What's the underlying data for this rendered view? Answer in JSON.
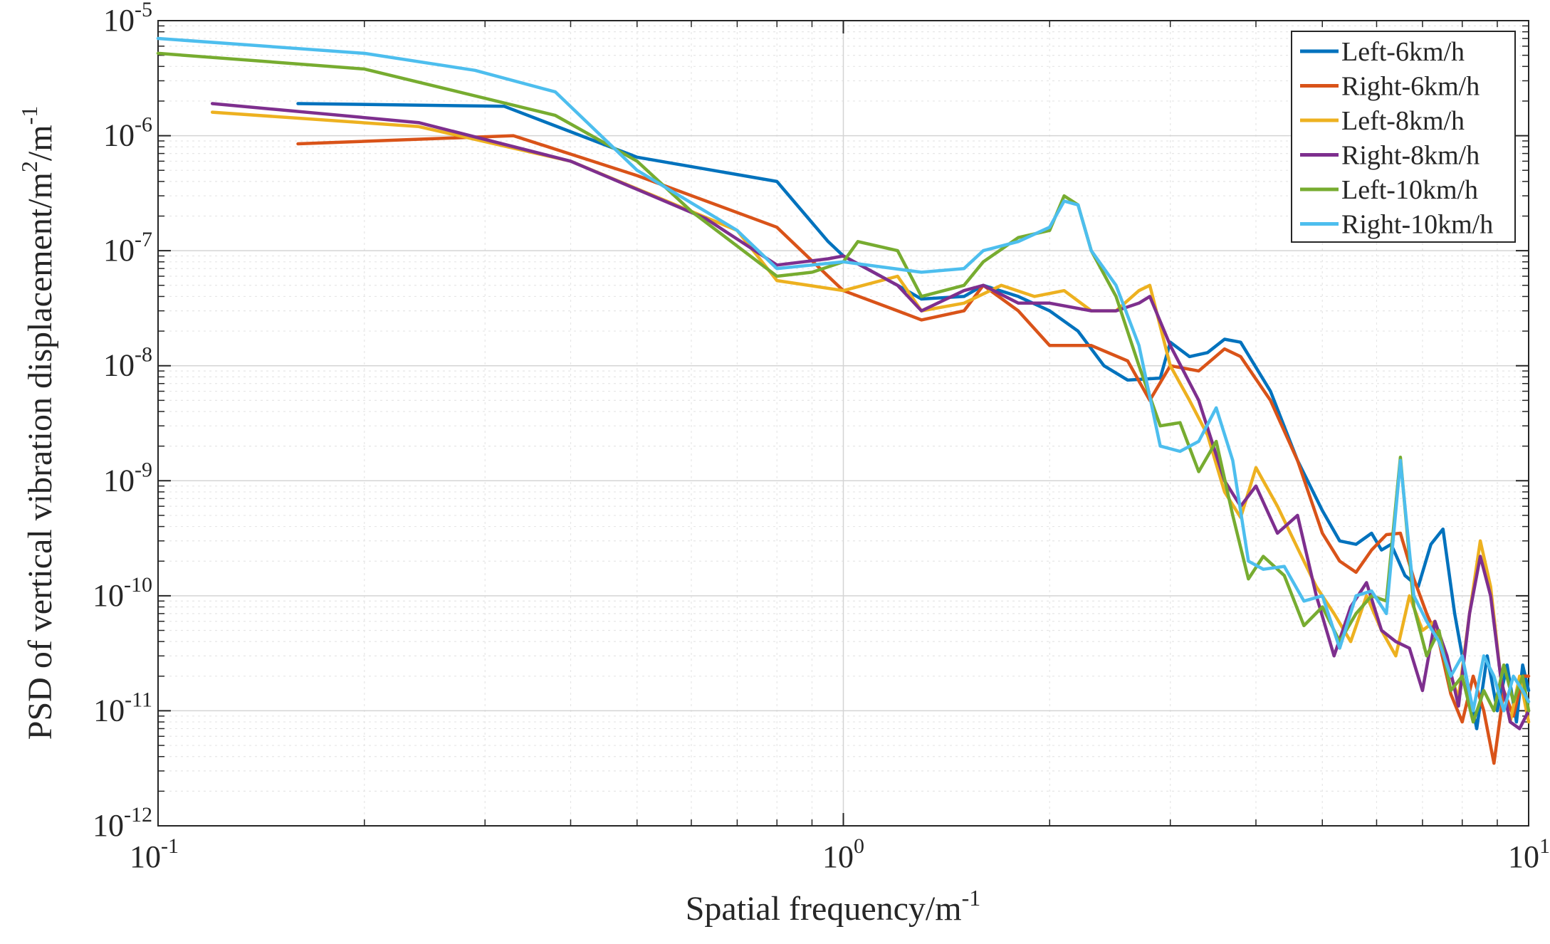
{
  "chart_data": {
    "type": "line",
    "xscale": "log",
    "yscale": "log",
    "xlabel": "Spatial frequency/m",
    "xlabel_sup": "-1",
    "ylabel": "PSD of vertical vibration displacement/m",
    "ylabel_sup1": "2",
    "ylabel_mid": "/m",
    "ylabel_sup2": "-1",
    "xlim": [
      0.1,
      10
    ],
    "ylim": [
      1e-12,
      1e-05
    ],
    "grid": true,
    "legend_position": "top-right",
    "x_ticks": [
      {
        "value": 0.1,
        "base": "10",
        "exp": "-1"
      },
      {
        "value": 1,
        "base": "10",
        "exp": "0"
      },
      {
        "value": 10,
        "base": "10",
        "exp": "1"
      }
    ],
    "y_ticks": [
      {
        "value": 1e-12,
        "base": "10",
        "exp": "-12"
      },
      {
        "value": 1e-11,
        "base": "10",
        "exp": "-11"
      },
      {
        "value": 1e-10,
        "base": "10",
        "exp": "-10"
      },
      {
        "value": 1e-09,
        "base": "10",
        "exp": "-9"
      },
      {
        "value": 1e-08,
        "base": "10",
        "exp": "-8"
      },
      {
        "value": 1e-07,
        "base": "10",
        "exp": "-7"
      },
      {
        "value": 1e-06,
        "base": "10",
        "exp": "-6"
      },
      {
        "value": 1e-05,
        "base": "10",
        "exp": "-5"
      }
    ],
    "series": [
      {
        "name": "Left-6km/h",
        "color": "#0072BD",
        "points": [
          [
            0.16,
            1.9e-06
          ],
          [
            0.32,
            1.8e-06
          ],
          [
            0.5,
            6.5e-07
          ],
          [
            0.8,
            4e-07
          ],
          [
            0.95,
            1.2e-07
          ],
          [
            1.0,
            9e-08
          ],
          [
            1.2,
            5e-08
          ],
          [
            1.3,
            3.8e-08
          ],
          [
            1.5,
            4e-08
          ],
          [
            1.6,
            5e-08
          ],
          [
            1.8,
            4e-08
          ],
          [
            2.0,
            3e-08
          ],
          [
            2.2,
            2e-08
          ],
          [
            2.4,
            1e-08
          ],
          [
            2.6,
            7.5e-09
          ],
          [
            2.9,
            7.8e-09
          ],
          [
            3.0,
            1.6e-08
          ],
          [
            3.2,
            1.2e-08
          ],
          [
            3.4,
            1.3e-08
          ],
          [
            3.6,
            1.7e-08
          ],
          [
            3.8,
            1.6e-08
          ],
          [
            4.2,
            6e-09
          ],
          [
            4.6,
            1.5e-09
          ],
          [
            5.0,
            5.5e-10
          ],
          [
            5.3,
            3e-10
          ],
          [
            5.6,
            2.8e-10
          ],
          [
            5.9,
            3.5e-10
          ],
          [
            6.1,
            2.5e-10
          ],
          [
            6.3,
            2.8e-10
          ],
          [
            6.6,
            1.5e-10
          ],
          [
            6.9,
            1.2e-10
          ],
          [
            7.2,
            2.8e-10
          ],
          [
            7.5,
            3.8e-10
          ],
          [
            7.8,
            7e-11
          ],
          [
            8.1,
            2e-11
          ],
          [
            8.4,
            7e-12
          ],
          [
            8.7,
            3e-11
          ],
          [
            9.0,
            1e-11
          ],
          [
            9.3,
            2.5e-11
          ],
          [
            9.6,
            8e-12
          ],
          [
            9.8,
            2.5e-11
          ],
          [
            10.0,
            1.5e-11
          ]
        ]
      },
      {
        "name": "Right-6km/h",
        "color": "#D95319",
        "points": [
          [
            0.16,
            8.5e-07
          ],
          [
            0.33,
            1e-06
          ],
          [
            0.5,
            4.5e-07
          ],
          [
            0.8,
            1.6e-07
          ],
          [
            0.95,
            6e-08
          ],
          [
            1.0,
            4.5e-08
          ],
          [
            1.2,
            3e-08
          ],
          [
            1.3,
            2.5e-08
          ],
          [
            1.5,
            3e-08
          ],
          [
            1.6,
            5e-08
          ],
          [
            1.8,
            3e-08
          ],
          [
            2.0,
            1.5e-08
          ],
          [
            2.3,
            1.5e-08
          ],
          [
            2.6,
            1.1e-08
          ],
          [
            2.8,
            5e-09
          ],
          [
            3.0,
            1e-08
          ],
          [
            3.3,
            9e-09
          ],
          [
            3.6,
            1.4e-08
          ],
          [
            3.8,
            1.2e-08
          ],
          [
            4.2,
            5e-09
          ],
          [
            4.6,
            1.5e-09
          ],
          [
            5.0,
            3.5e-10
          ],
          [
            5.3,
            2e-10
          ],
          [
            5.6,
            1.6e-10
          ],
          [
            5.9,
            2.5e-10
          ],
          [
            6.2,
            3.4e-10
          ],
          [
            6.5,
            3.5e-10
          ],
          [
            6.8,
            1.4e-10
          ],
          [
            7.1,
            7e-11
          ],
          [
            7.4,
            4e-11
          ],
          [
            7.7,
            1.4e-11
          ],
          [
            8.0,
            8e-12
          ],
          [
            8.3,
            2e-11
          ],
          [
            8.6,
            1e-11
          ],
          [
            8.9,
            3.5e-12
          ],
          [
            9.2,
            1.5e-11
          ],
          [
            9.5,
            9e-12
          ],
          [
            9.8,
            2e-11
          ],
          [
            10.0,
            2e-11
          ]
        ]
      },
      {
        "name": "Left-8km/h",
        "color": "#EDB120",
        "points": [
          [
            0.12,
            1.6e-06
          ],
          [
            0.24,
            1.2e-06
          ],
          [
            0.4,
            6e-07
          ],
          [
            0.7,
            1.5e-07
          ],
          [
            0.8,
            5.5e-08
          ],
          [
            1.0,
            4.5e-08
          ],
          [
            1.2,
            6e-08
          ],
          [
            1.3,
            3e-08
          ],
          [
            1.5,
            3.5e-08
          ],
          [
            1.7,
            5e-08
          ],
          [
            1.9,
            4e-08
          ],
          [
            2.1,
            4.5e-08
          ],
          [
            2.3,
            3e-08
          ],
          [
            2.5,
            3e-08
          ],
          [
            2.7,
            4.5e-08
          ],
          [
            2.8,
            5e-08
          ],
          [
            3.0,
            1e-08
          ],
          [
            3.2,
            5e-09
          ],
          [
            3.4,
            2.5e-09
          ],
          [
            3.6,
            8e-10
          ],
          [
            3.8,
            4.8e-10
          ],
          [
            4.0,
            1.3e-09
          ],
          [
            4.3,
            6e-10
          ],
          [
            4.6,
            2.6e-10
          ],
          [
            4.9,
            1.2e-10
          ],
          [
            5.2,
            7e-11
          ],
          [
            5.5,
            4e-11
          ],
          [
            5.8,
            1e-10
          ],
          [
            6.1,
            5e-11
          ],
          [
            6.4,
            3e-11
          ],
          [
            6.7,
            1e-10
          ],
          [
            7.0,
            5e-11
          ],
          [
            7.3,
            6e-11
          ],
          [
            7.6,
            2.5e-11
          ],
          [
            7.9,
            1.3e-11
          ],
          [
            8.2,
            7e-11
          ],
          [
            8.5,
            3e-10
          ],
          [
            8.8,
            1.2e-10
          ],
          [
            9.1,
            2e-11
          ],
          [
            9.4,
            8e-12
          ],
          [
            9.7,
            2e-11
          ],
          [
            10.0,
            8e-12
          ]
        ]
      },
      {
        "name": "Right-8km/h",
        "color": "#7E2F8E",
        "points": [
          [
            0.12,
            1.9e-06
          ],
          [
            0.24,
            1.3e-06
          ],
          [
            0.4,
            6e-07
          ],
          [
            0.63,
            1.9e-07
          ],
          [
            0.8,
            7.5e-08
          ],
          [
            0.95,
            8.5e-08
          ],
          [
            1.0,
            9e-08
          ],
          [
            1.2,
            5e-08
          ],
          [
            1.3,
            3e-08
          ],
          [
            1.5,
            4.5e-08
          ],
          [
            1.6,
            5e-08
          ],
          [
            1.8,
            3.5e-08
          ],
          [
            2.0,
            3.5e-08
          ],
          [
            2.3,
            3e-08
          ],
          [
            2.5,
            3e-08
          ],
          [
            2.7,
            3.5e-08
          ],
          [
            2.8,
            4e-08
          ],
          [
            3.0,
            1.5e-08
          ],
          [
            3.3,
            5e-09
          ],
          [
            3.6,
            1e-09
          ],
          [
            3.8,
            6e-10
          ],
          [
            4.0,
            9e-10
          ],
          [
            4.3,
            3.5e-10
          ],
          [
            4.6,
            5e-10
          ],
          [
            4.9,
            1e-10
          ],
          [
            5.2,
            3e-11
          ],
          [
            5.5,
            8e-11
          ],
          [
            5.8,
            1.3e-10
          ],
          [
            6.1,
            5e-11
          ],
          [
            6.4,
            4e-11
          ],
          [
            6.7,
            3.5e-11
          ],
          [
            7.0,
            1.5e-11
          ],
          [
            7.3,
            6e-11
          ],
          [
            7.6,
            3e-11
          ],
          [
            7.9,
            1.1e-11
          ],
          [
            8.2,
            7e-11
          ],
          [
            8.5,
            2.2e-10
          ],
          [
            8.8,
            1e-10
          ],
          [
            9.1,
            2e-11
          ],
          [
            9.4,
            8e-12
          ],
          [
            9.7,
            7e-12
          ],
          [
            10.0,
            1e-11
          ]
        ]
      },
      {
        "name": "Left-10km/h",
        "color": "#77AC30",
        "points": [
          [
            0.1,
            5.2e-06
          ],
          [
            0.2,
            3.8e-06
          ],
          [
            0.38,
            1.5e-06
          ],
          [
            0.5,
            6e-07
          ],
          [
            0.6,
            2.2e-07
          ],
          [
            0.8,
            6e-08
          ],
          [
            0.9,
            6.5e-08
          ],
          [
            1.0,
            8e-08
          ],
          [
            1.05,
            1.2e-07
          ],
          [
            1.2,
            1e-07
          ],
          [
            1.3,
            4e-08
          ],
          [
            1.5,
            5e-08
          ],
          [
            1.6,
            8e-08
          ],
          [
            1.8,
            1.3e-07
          ],
          [
            2.0,
            1.5e-07
          ],
          [
            2.1,
            3e-07
          ],
          [
            2.2,
            2.5e-07
          ],
          [
            2.3,
            1e-07
          ],
          [
            2.5,
            4e-08
          ],
          [
            2.7,
            1e-08
          ],
          [
            2.9,
            3e-09
          ],
          [
            3.1,
            3.2e-09
          ],
          [
            3.3,
            1.2e-09
          ],
          [
            3.5,
            2.2e-09
          ],
          [
            3.7,
            5e-10
          ],
          [
            3.9,
            1.4e-10
          ],
          [
            4.1,
            2.2e-10
          ],
          [
            4.4,
            1.5e-10
          ],
          [
            4.7,
            5.5e-11
          ],
          [
            5.0,
            8e-11
          ],
          [
            5.3,
            4e-11
          ],
          [
            5.6,
            7e-11
          ],
          [
            5.9,
            1e-10
          ],
          [
            6.2,
            9e-11
          ],
          [
            6.5,
            1.6e-09
          ],
          [
            6.8,
            8e-11
          ],
          [
            7.1,
            3e-11
          ],
          [
            7.4,
            5e-11
          ],
          [
            7.7,
            1.5e-11
          ],
          [
            8.0,
            2e-11
          ],
          [
            8.3,
            8e-12
          ],
          [
            8.6,
            1.5e-11
          ],
          [
            8.9,
            1e-11
          ],
          [
            9.2,
            2.5e-11
          ],
          [
            9.5,
            1.2e-11
          ],
          [
            9.8,
            2e-11
          ],
          [
            10.0,
            1e-11
          ]
        ]
      },
      {
        "name": "Right-10km/h",
        "color": "#4DBEEE",
        "points": [
          [
            0.1,
            7e-06
          ],
          [
            0.2,
            5.2e-06
          ],
          [
            0.29,
            3.7e-06
          ],
          [
            0.38,
            2.4e-06
          ],
          [
            0.5,
            5e-07
          ],
          [
            0.7,
            1.5e-07
          ],
          [
            0.8,
            7e-08
          ],
          [
            1.0,
            8e-08
          ],
          [
            1.3,
            6.5e-08
          ],
          [
            1.5,
            7e-08
          ],
          [
            1.6,
            1e-07
          ],
          [
            1.8,
            1.2e-07
          ],
          [
            2.0,
            1.6e-07
          ],
          [
            2.1,
            2.7e-07
          ],
          [
            2.2,
            2.5e-07
          ],
          [
            2.3,
            1e-07
          ],
          [
            2.5,
            5e-08
          ],
          [
            2.7,
            1.5e-08
          ],
          [
            2.9,
            2e-09
          ],
          [
            3.1,
            1.8e-09
          ],
          [
            3.3,
            2.2e-09
          ],
          [
            3.5,
            4.3e-09
          ],
          [
            3.7,
            1.5e-09
          ],
          [
            3.9,
            2e-10
          ],
          [
            4.1,
            1.7e-10
          ],
          [
            4.4,
            1.8e-10
          ],
          [
            4.7,
            9e-11
          ],
          [
            5.0,
            1e-10
          ],
          [
            5.3,
            3.5e-11
          ],
          [
            5.6,
            1e-10
          ],
          [
            5.9,
            1.1e-10
          ],
          [
            6.2,
            7e-11
          ],
          [
            6.5,
            1.5e-09
          ],
          [
            6.8,
            1e-10
          ],
          [
            7.1,
            6e-11
          ],
          [
            7.4,
            4e-11
          ],
          [
            7.7,
            2e-11
          ],
          [
            8.0,
            3e-11
          ],
          [
            8.3,
            1e-11
          ],
          [
            8.6,
            3e-11
          ],
          [
            8.9,
            2e-11
          ],
          [
            9.2,
            1e-11
          ],
          [
            9.5,
            2e-11
          ],
          [
            9.8,
            1.5e-11
          ],
          [
            10.0,
            1.2e-11
          ]
        ]
      }
    ]
  }
}
